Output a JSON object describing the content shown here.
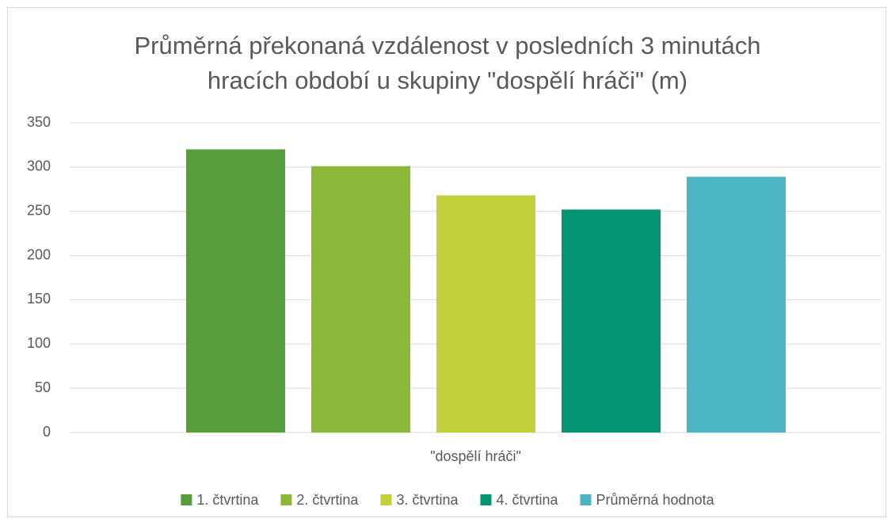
{
  "chart_data": {
    "type": "bar",
    "title": "Průměrná překonaná vzdálenost v posledních 3 minutách hracích období u skupiny \"dospělí hráči\" (m)",
    "categories": [
      "\"dospělí hráči\""
    ],
    "series": [
      {
        "name": "1. čtvrtina",
        "color": "#559e3a",
        "values": [
          320
        ]
      },
      {
        "name": "2. čtvrtina",
        "color": "#8cb83a",
        "values": [
          301
        ]
      },
      {
        "name": "3. čtvrtina",
        "color": "#c3d03c",
        "values": [
          268
        ]
      },
      {
        "name": "4. čtvrtina",
        "color": "#039474",
        "values": [
          252
        ]
      },
      {
        "name": "Průměrná hodnota",
        "color": "#4bb4c5",
        "values": [
          289
        ]
      }
    ],
    "ylim": [
      0,
      350
    ],
    "yticks": [
      0,
      50,
      100,
      150,
      200,
      250,
      300,
      350
    ],
    "grid": true,
    "legend": "bottom"
  }
}
